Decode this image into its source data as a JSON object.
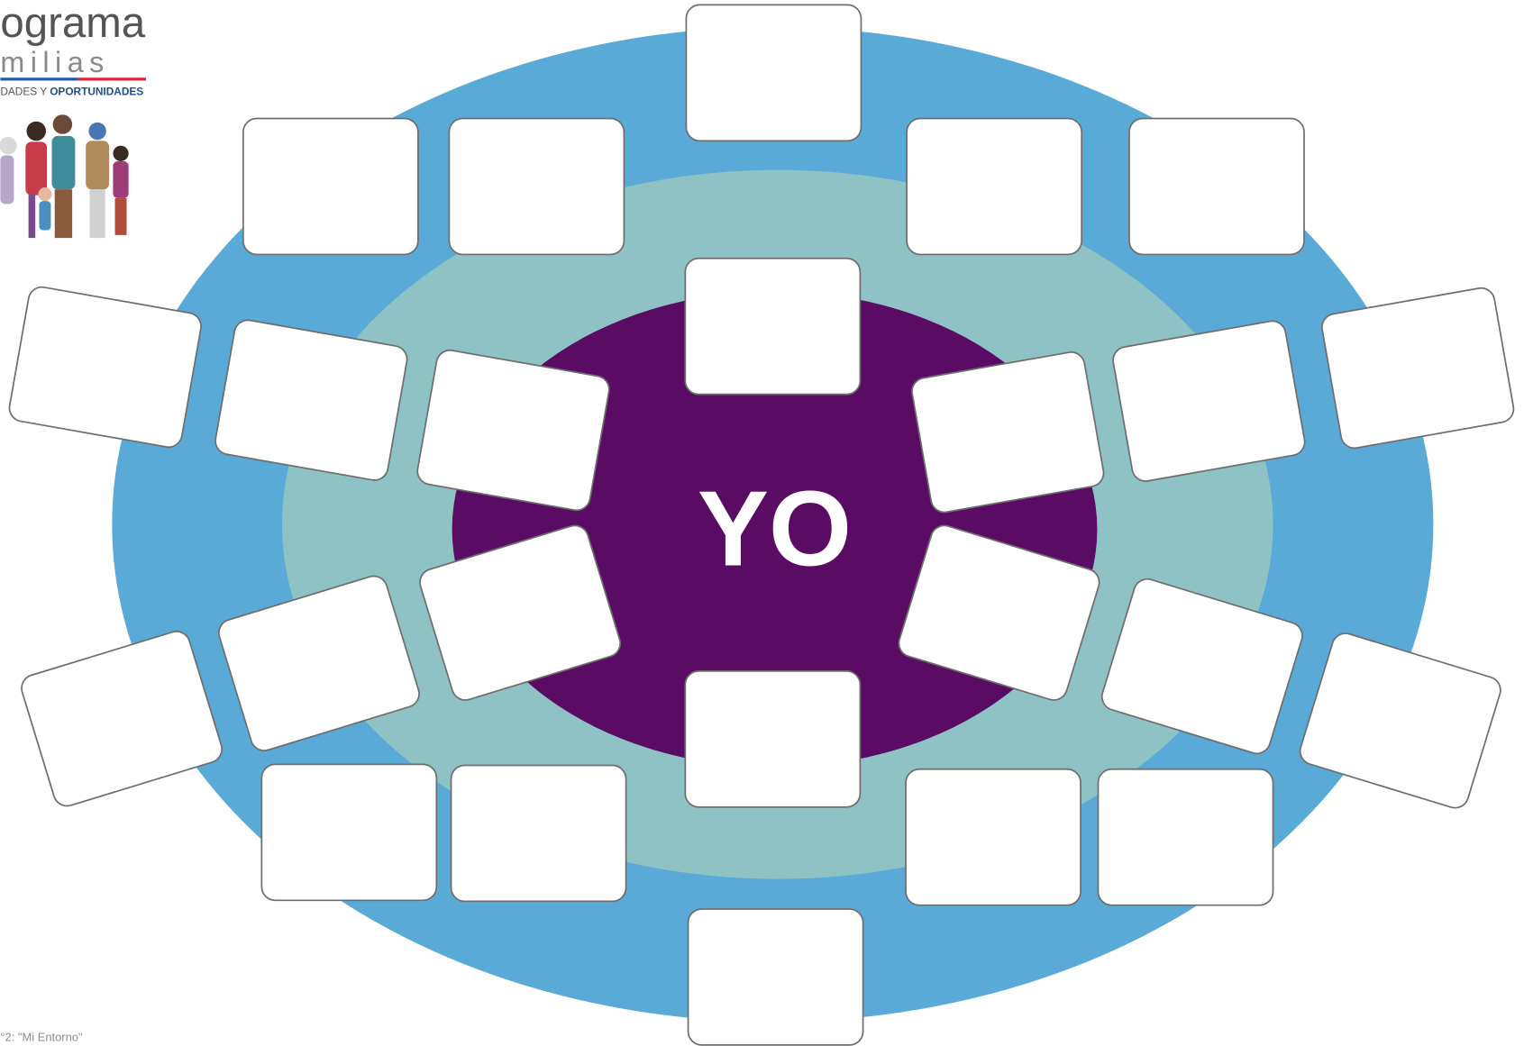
{
  "header": {
    "title": "ograma",
    "subtitle": "milias",
    "tagline": "DADES Y ",
    "tagline_bold": "OPORTUNIDADES"
  },
  "center_label": "YO",
  "footer": "°2: \"Mi Entorno\""
}
